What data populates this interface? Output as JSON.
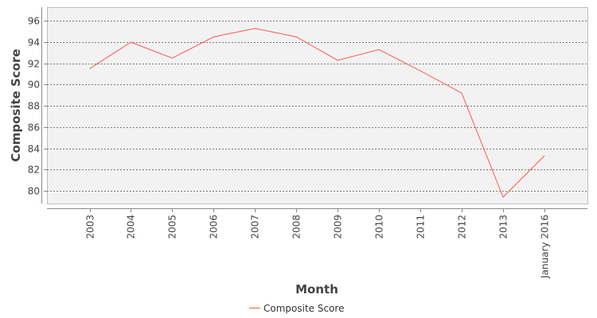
{
  "chart_data": {
    "type": "line",
    "title": "",
    "xlabel": "Month",
    "ylabel": "Composite Score",
    "categories": [
      "2003",
      "2004",
      "2005",
      "2006",
      "2007",
      "2008",
      "2009",
      "2010",
      "2011",
      "2012",
      "2013",
      "January 2016"
    ],
    "series": [
      {
        "name": "Composite Score",
        "color": "#ff5555",
        "values": [
          91.5,
          94.0,
          92.5,
          94.5,
          95.3,
          94.5,
          92.3,
          93.3,
          91.3,
          89.2,
          79.4,
          83.3
        ]
      }
    ],
    "y_ticks": [
      80,
      82,
      84,
      86,
      88,
      90,
      92,
      94,
      96
    ],
    "ylim": [
      78.8,
      97.3
    ],
    "grid": true,
    "legend_position": "bottom"
  }
}
